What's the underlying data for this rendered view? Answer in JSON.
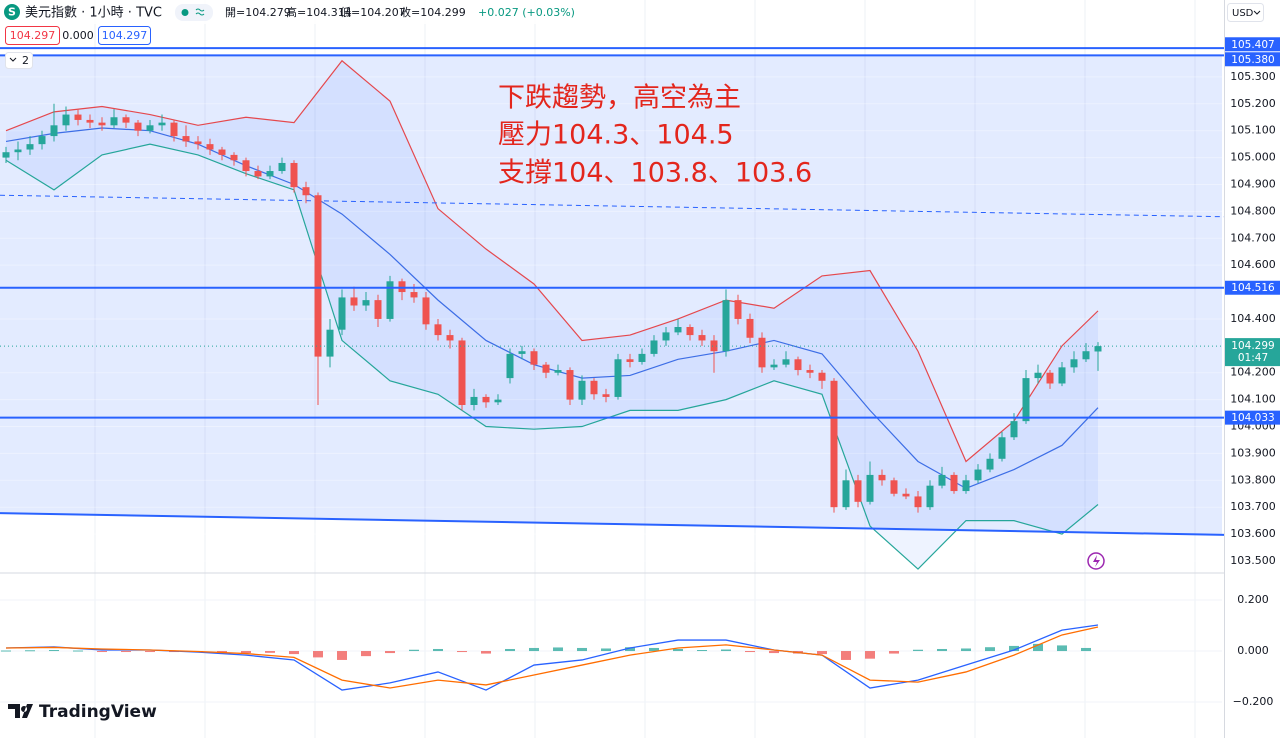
{
  "header": {
    "logo_letter": "S",
    "symbol": "美元指數 · 1小時 · TVC",
    "ohlc": [
      "開=104.279",
      "高=104.314",
      "低=104.207",
      "收=104.299"
    ],
    "change": "+0.027 (+0.03%)",
    "boxes": [
      "104.297",
      "0.000",
      "104.297"
    ],
    "indicator_count": "2",
    "currency": "USD",
    "brand": "TradingView"
  },
  "chart_data": {
    "type": "candlestick",
    "ylim": [
      103.459,
      105.586
    ],
    "yticks": [
      {
        "value": 105.3,
        "label": "105.300"
      },
      {
        "value": 105.2,
        "label": "105.200"
      },
      {
        "value": 105.1,
        "label": "105.100"
      },
      {
        "value": 105.0,
        "label": "105.000"
      },
      {
        "value": 104.9,
        "label": "104.900"
      },
      {
        "value": 104.8,
        "label": "104.800"
      },
      {
        "value": 104.7,
        "label": "104.700"
      },
      {
        "value": 104.6,
        "label": "104.600"
      },
      {
        "value": 104.4,
        "label": "104.400"
      },
      {
        "value": 104.2,
        "label": "104.200"
      },
      {
        "value": 104.1,
        "label": "104.100"
      },
      {
        "value": 104.0,
        "label": "104.000"
      },
      {
        "value": 103.9,
        "label": "103.900"
      },
      {
        "value": 103.8,
        "label": "103.800"
      },
      {
        "value": 103.7,
        "label": "103.700"
      },
      {
        "value": 103.6,
        "label": "103.600"
      },
      {
        "value": 103.5,
        "label": "103.500"
      }
    ],
    "up_color": "#26a69a",
    "down_color": "#ef5350",
    "candles": [
      [
        105.0,
        105.04,
        104.98,
        105.02
      ],
      [
        105.02,
        105.06,
        104.99,
        105.03
      ],
      [
        105.03,
        105.08,
        105.01,
        105.05
      ],
      [
        105.05,
        105.1,
        105.03,
        105.08
      ],
      [
        105.08,
        105.2,
        105.06,
        105.12
      ],
      [
        105.12,
        105.19,
        105.1,
        105.16
      ],
      [
        105.16,
        105.18,
        105.12,
        105.14
      ],
      [
        105.14,
        105.16,
        105.11,
        105.13
      ],
      [
        105.13,
        105.15,
        105.1,
        105.12
      ],
      [
        105.12,
        105.18,
        105.11,
        105.15
      ],
      [
        105.15,
        105.16,
        105.11,
        105.13
      ],
      [
        105.13,
        105.14,
        105.08,
        105.1
      ],
      [
        105.1,
        105.14,
        105.09,
        105.12
      ],
      [
        105.12,
        105.16,
        105.1,
        105.13
      ],
      [
        105.13,
        105.14,
        105.06,
        105.08
      ],
      [
        105.08,
        105.12,
        105.04,
        105.06
      ],
      [
        105.06,
        105.08,
        105.03,
        105.05
      ],
      [
        105.05,
        105.07,
        105.01,
        105.03
      ],
      [
        105.03,
        105.04,
        104.99,
        105.01
      ],
      [
        105.01,
        105.02,
        104.97,
        104.99
      ],
      [
        104.99,
        105.0,
        104.93,
        104.95
      ],
      [
        104.95,
        104.97,
        104.92,
        104.93
      ],
      [
        104.93,
        104.97,
        104.92,
        104.95
      ],
      [
        104.95,
        105.0,
        104.94,
        104.98
      ],
      [
        104.98,
        104.99,
        104.87,
        104.89
      ],
      [
        104.89,
        104.91,
        104.83,
        104.86
      ],
      [
        104.86,
        104.87,
        104.08,
        104.26
      ],
      [
        104.26,
        104.4,
        104.22,
        104.36
      ],
      [
        104.36,
        104.51,
        104.34,
        104.48
      ],
      [
        104.48,
        104.52,
        104.43,
        104.45
      ],
      [
        104.45,
        104.5,
        104.43,
        104.47
      ],
      [
        104.47,
        104.49,
        104.37,
        104.4
      ],
      [
        104.4,
        104.56,
        104.39,
        104.54
      ],
      [
        104.54,
        104.55,
        104.47,
        104.5
      ],
      [
        104.5,
        104.53,
        104.46,
        104.48
      ],
      [
        104.48,
        104.5,
        104.36,
        104.38
      ],
      [
        104.38,
        104.4,
        104.32,
        104.34
      ],
      [
        104.34,
        104.36,
        104.29,
        104.32
      ],
      [
        104.32,
        104.33,
        104.06,
        104.08
      ],
      [
        104.08,
        104.14,
        104.06,
        104.11
      ],
      [
        104.11,
        104.12,
        104.07,
        104.09
      ],
      [
        104.09,
        104.12,
        104.08,
        104.1
      ],
      [
        104.18,
        104.29,
        104.16,
        104.27
      ],
      [
        104.27,
        104.3,
        104.25,
        104.28
      ],
      [
        104.28,
        104.29,
        104.21,
        104.23
      ],
      [
        104.23,
        104.24,
        104.18,
        104.2
      ],
      [
        104.2,
        104.23,
        104.19,
        104.21
      ],
      [
        104.21,
        104.22,
        104.08,
        104.1
      ],
      [
        104.1,
        104.19,
        104.08,
        104.17
      ],
      [
        104.17,
        104.18,
        104.1,
        104.12
      ],
      [
        104.12,
        104.14,
        104.09,
        104.11
      ],
      [
        104.11,
        104.27,
        104.1,
        104.25
      ],
      [
        104.25,
        104.27,
        104.22,
        104.24
      ],
      [
        104.24,
        104.29,
        104.23,
        104.27
      ],
      [
        104.27,
        104.34,
        104.26,
        104.32
      ],
      [
        104.32,
        104.37,
        104.3,
        104.35
      ],
      [
        104.35,
        104.4,
        104.34,
        104.37
      ],
      [
        104.37,
        104.38,
        104.32,
        104.34
      ],
      [
        104.34,
        104.36,
        104.3,
        104.32
      ],
      [
        104.32,
        104.34,
        104.2,
        104.28
      ],
      [
        104.28,
        104.51,
        104.26,
        104.47
      ],
      [
        104.47,
        104.49,
        104.38,
        104.4
      ],
      [
        104.4,
        104.42,
        104.31,
        104.33
      ],
      [
        104.33,
        104.35,
        104.2,
        104.22
      ],
      [
        104.22,
        104.25,
        104.21,
        104.23
      ],
      [
        104.23,
        104.28,
        104.22,
        104.25
      ],
      [
        104.25,
        104.26,
        104.19,
        104.21
      ],
      [
        104.21,
        104.23,
        104.18,
        104.2
      ],
      [
        104.2,
        104.21,
        104.14,
        104.17
      ],
      [
        104.17,
        104.18,
        103.68,
        103.7
      ],
      [
        103.7,
        103.84,
        103.69,
        103.8
      ],
      [
        103.8,
        103.82,
        103.7,
        103.72
      ],
      [
        103.72,
        103.87,
        103.71,
        103.82
      ],
      [
        103.82,
        103.84,
        103.78,
        103.8
      ],
      [
        103.8,
        103.81,
        103.74,
        103.75
      ],
      [
        103.75,
        103.77,
        103.73,
        103.74
      ],
      [
        103.74,
        103.76,
        103.68,
        103.7
      ],
      [
        103.7,
        103.8,
        103.69,
        103.78
      ],
      [
        103.78,
        103.85,
        103.77,
        103.82
      ],
      [
        103.82,
        103.83,
        103.75,
        103.76
      ],
      [
        103.76,
        103.82,
        103.75,
        103.8
      ],
      [
        103.8,
        103.86,
        103.79,
        103.84
      ],
      [
        103.84,
        103.9,
        103.83,
        103.88
      ],
      [
        103.88,
        103.98,
        103.87,
        103.96
      ],
      [
        103.96,
        104.05,
        103.95,
        104.02
      ],
      [
        104.02,
        104.21,
        104.01,
        104.18
      ],
      [
        104.18,
        104.23,
        104.16,
        104.2
      ],
      [
        104.2,
        104.21,
        104.14,
        104.16
      ],
      [
        104.16,
        104.24,
        104.15,
        104.22
      ],
      [
        104.22,
        104.28,
        104.2,
        104.25
      ],
      [
        104.25,
        104.31,
        104.24,
        104.28
      ],
      [
        104.279,
        104.314,
        104.207,
        104.299
      ]
    ],
    "bands": {
      "x": [
        0,
        4,
        8,
        12,
        16,
        20,
        24,
        28,
        32,
        36,
        40,
        44,
        48,
        52,
        56,
        60,
        64,
        68,
        72,
        76,
        80,
        84,
        88,
        91
      ],
      "series": [
        {
          "color": "#e5484d",
          "values": [
            105.1,
            105.17,
            105.19,
            105.16,
            105.12,
            105.15,
            105.13,
            105.36,
            105.21,
            104.81,
            104.66,
            104.53,
            104.32,
            104.34,
            104.4,
            104.47,
            104.44,
            104.56,
            104.58,
            104.28,
            103.87,
            104.02,
            104.3,
            104.43
          ]
        },
        {
          "color": "#3d6ee6",
          "values": [
            105.06,
            105.09,
            105.11,
            105.1,
            105.05,
            104.97,
            104.9,
            104.79,
            104.64,
            104.47,
            104.32,
            104.23,
            104.18,
            104.19,
            104.25,
            104.28,
            104.32,
            104.27,
            104.06,
            103.87,
            103.77,
            103.84,
            103.93,
            104.07
          ]
        },
        {
          "color": "#26a69a",
          "values": [
            104.99,
            104.88,
            105.01,
            105.05,
            105.01,
            104.94,
            104.88,
            104.32,
            104.17,
            104.12,
            104.0,
            103.99,
            104.0,
            104.06,
            104.06,
            104.1,
            104.17,
            104.12,
            103.63,
            103.47,
            103.65,
            103.65,
            103.6,
            103.71
          ]
        }
      ]
    },
    "levels": [
      105.407,
      {
        "value": 105.38,
        "label": "105.380"
      },
      104.516,
      104.033
    ],
    "level_color": "#2962ff",
    "trend_lines": [
      {
        "x": [
          -0.5,
          101.6
        ],
        "values": [
          104.86,
          104.78
        ],
        "style": "dashed"
      },
      {
        "x": [
          -0.5,
          101.6
        ],
        "values": [
          103.678,
          103.597
        ],
        "style": "solid"
      }
    ],
    "last_price": 104.299,
    "countdown": "01:47",
    "last_color": "#26a69a",
    "annotations": [
      "下跌趨勢，高空為主",
      "壓力104.3、104.5",
      "支撐104、103.8、103.6"
    ],
    "macd": {
      "ylim": [
        -0.341,
        0.302
      ],
      "yticks": [
        {
          "value": 0.2,
          "label": "0.200"
        },
        {
          "value": 0,
          "label": "0.000"
        },
        {
          "value": -0.2,
          "label": "−0.200"
        }
      ],
      "x": [
        0,
        4,
        8,
        12,
        16,
        20,
        24,
        28,
        32,
        36,
        40,
        44,
        48,
        52,
        56,
        60,
        64,
        68,
        72,
        76,
        80,
        84,
        88,
        91
      ],
      "series": [
        {
          "color": "#2962ff",
          "values": [
            0.012,
            0.016,
            0.004,
            0.004,
            -0.004,
            -0.016,
            -0.035,
            -0.153,
            -0.125,
            -0.082,
            -0.153,
            -0.055,
            -0.035,
            0.012,
            0.043,
            0.043,
            0.004,
            -0.016,
            -0.145,
            -0.114,
            -0.055,
            0.004,
            0.082,
            0.102
          ]
        },
        {
          "color": "#ff6d00",
          "values": [
            0.012,
            0.014,
            0.008,
            0.004,
            -0.002,
            -0.01,
            -0.025,
            -0.114,
            -0.145,
            -0.114,
            -0.133,
            -0.094,
            -0.055,
            -0.016,
            0.012,
            0.024,
            0.004,
            -0.016,
            -0.114,
            -0.122,
            -0.082,
            -0.016,
            0.063,
            0.094
          ]
        }
      ],
      "histogram": {
        "x": [
          0,
          2,
          4,
          6,
          8,
          10,
          12,
          14,
          16,
          18,
          20,
          22,
          24,
          26,
          28,
          30,
          32,
          34,
          36,
          38,
          40,
          42,
          44,
          46,
          48,
          50,
          52,
          54,
          56,
          58,
          60,
          62,
          64,
          66,
          68,
          70,
          72,
          74,
          76,
          78,
          80,
          82,
          84,
          86,
          88,
          90
        ],
        "values": [
          0.002,
          0.003,
          0.004,
          0.002,
          -0.002,
          -0.003,
          -0.002,
          -0.004,
          -0.005,
          -0.006,
          -0.008,
          -0.007,
          -0.012,
          -0.025,
          -0.035,
          -0.02,
          -0.008,
          0.005,
          0.008,
          -0.004,
          -0.01,
          0.008,
          0.012,
          0.014,
          0.012,
          0.01,
          0.015,
          0.012,
          0.008,
          0.004,
          0.006,
          -0.004,
          -0.008,
          -0.01,
          -0.012,
          -0.035,
          -0.03,
          -0.01,
          0.005,
          0.008,
          0.01,
          0.015,
          0.02,
          0.028,
          0.022,
          0.012
        ],
        "colors": [
          "#26a69a",
          "#ef5350"
        ]
      }
    }
  }
}
